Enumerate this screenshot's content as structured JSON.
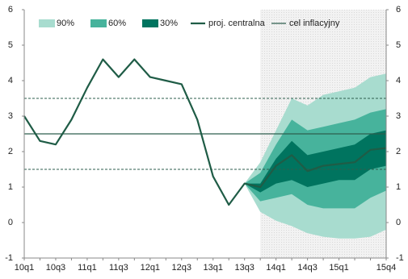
{
  "chart_data": {
    "type": "fan",
    "categories": [
      "10q1",
      null,
      "10q3",
      null,
      "11q1",
      null,
      "11q3",
      null,
      "12q1",
      null,
      "12q3",
      null,
      "13q1",
      null,
      "13q3",
      null,
      "14q1",
      null,
      "14q3",
      null,
      "15q1",
      null,
      null,
      "15q4"
    ],
    "ylim": [
      -1,
      6
    ],
    "yticks": [
      -1,
      0,
      1,
      2,
      3,
      4,
      5,
      6
    ],
    "bands": [
      {
        "name": "90%",
        "color": "#a8dccf",
        "lower": [
          null,
          null,
          null,
          null,
          null,
          null,
          null,
          null,
          null,
          null,
          null,
          null,
          null,
          null,
          1.1,
          0.3,
          0.05,
          -0.1,
          -0.3,
          -0.4,
          -0.45,
          -0.45,
          -0.4,
          -0.2
        ],
        "upper": [
          null,
          null,
          null,
          null,
          null,
          null,
          null,
          null,
          null,
          null,
          null,
          null,
          null,
          null,
          1.1,
          1.7,
          2.6,
          3.5,
          3.3,
          3.6,
          3.7,
          3.8,
          4.1,
          4.2
        ]
      },
      {
        "name": "60%",
        "color": "#47b39c",
        "lower": [
          null,
          null,
          null,
          null,
          null,
          null,
          null,
          null,
          null,
          null,
          null,
          null,
          null,
          null,
          1.1,
          0.6,
          0.7,
          0.8,
          0.5,
          0.4,
          0.4,
          0.4,
          0.7,
          0.9
        ],
        "upper": [
          null,
          null,
          null,
          null,
          null,
          null,
          null,
          null,
          null,
          null,
          null,
          null,
          null,
          null,
          1.1,
          1.4,
          2.2,
          2.9,
          2.6,
          2.7,
          2.8,
          2.9,
          3.1,
          3.2
        ]
      },
      {
        "name": "30%",
        "color": "#00745f",
        "lower": [
          null,
          null,
          null,
          null,
          null,
          null,
          null,
          null,
          null,
          null,
          null,
          null,
          null,
          null,
          1.1,
          0.85,
          1.1,
          1.2,
          1.0,
          1.1,
          1.2,
          1.2,
          1.5,
          1.6
        ],
        "upper": [
          null,
          null,
          null,
          null,
          null,
          null,
          null,
          null,
          null,
          null,
          null,
          null,
          null,
          null,
          1.1,
          1.1,
          1.8,
          2.3,
          1.9,
          2.0,
          2.1,
          2.2,
          2.5,
          2.6
        ]
      }
    ],
    "central": {
      "name": "proj. centralna",
      "color": "#1f5c46",
      "values": [
        3.0,
        2.3,
        2.2,
        2.9,
        3.8,
        4.6,
        4.1,
        4.6,
        4.1,
        4.0,
        3.9,
        2.9,
        1.3,
        0.5,
        1.1,
        1.0,
        1.6,
        1.9,
        1.45,
        1.6,
        1.65,
        1.7,
        2.05,
        2.1
      ]
    },
    "target": {
      "name": "cel inflacyjny",
      "value": 2.5,
      "color": "#2e5e4e"
    },
    "tolerance": [
      1.5,
      3.5
    ]
  }
}
